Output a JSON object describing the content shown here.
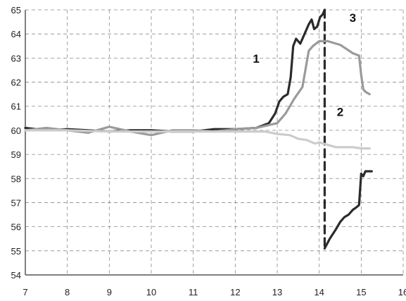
{
  "chart_data": {
    "type": "line",
    "title": "",
    "xlabel": "",
    "ylabel": "",
    "xlim": [
      7,
      16
    ],
    "ylim": [
      54,
      65
    ],
    "xticks": [
      7,
      8,
      9,
      10,
      11,
      12,
      13,
      14,
      15,
      16
    ],
    "yticks": [
      54,
      55,
      56,
      57,
      58,
      59,
      60,
      61,
      62,
      63,
      64,
      65
    ],
    "grid": true,
    "legend": "none",
    "annotations": [
      {
        "text": "1",
        "x": 12.5,
        "y": 62.8
      },
      {
        "text": "2",
        "x": 14.5,
        "y": 60.6
      },
      {
        "text": "3",
        "x": 14.8,
        "y": 64.5
      }
    ],
    "series": [
      {
        "color": "#2b2b2b",
        "style": "solid",
        "x": [
          7.0,
          7.5,
          8.0,
          8.5,
          9.0,
          9.5,
          10.0,
          10.5,
          11.0,
          11.5,
          12.0,
          12.5,
          12.8,
          12.95,
          13.05,
          13.15,
          13.25,
          13.32,
          13.38,
          13.45,
          13.55,
          13.65,
          13.75,
          13.82,
          13.88,
          13.95,
          14.02,
          14.08,
          14.13
        ],
        "y": [
          60.1,
          60.0,
          60.05,
          60.0,
          59.95,
          60.0,
          60.0,
          59.95,
          59.95,
          60.05,
          60.05,
          60.1,
          60.3,
          60.7,
          61.2,
          61.4,
          61.5,
          62.2,
          63.5,
          63.8,
          63.6,
          64.0,
          64.4,
          64.6,
          64.2,
          64.3,
          64.7,
          64.8,
          65.0
        ]
      },
      {
        "color": "#2b2b2b",
        "style": "dashed",
        "x": [
          14.13,
          14.13
        ],
        "y": [
          65.0,
          55.1
        ]
      },
      {
        "color": "#2b2b2b",
        "style": "solid",
        "x": [
          14.13,
          14.25,
          14.4,
          14.5,
          14.6,
          14.7,
          14.8,
          14.88,
          14.95,
          15.0,
          15.05,
          15.1,
          15.15,
          15.2,
          15.25
        ],
        "y": [
          55.1,
          55.5,
          55.9,
          56.2,
          56.4,
          56.5,
          56.7,
          56.8,
          56.9,
          58.2,
          58.1,
          58.3,
          58.3,
          58.3,
          58.3
        ]
      },
      {
        "color": "#9a9a9a",
        "style": "solid",
        "x": [
          7.0,
          7.5,
          8.0,
          8.5,
          9.0,
          9.5,
          10.0,
          10.5,
          11.0,
          11.5,
          12.0,
          12.5,
          13.0,
          13.2,
          13.4,
          13.6,
          13.75,
          13.85,
          14.0,
          14.2,
          14.5,
          14.8,
          14.95,
          15.0,
          15.05,
          15.1,
          15.2
        ],
        "y": [
          60.0,
          60.1,
          60.0,
          59.9,
          60.15,
          59.95,
          59.8,
          60.0,
          60.0,
          59.95,
          60.05,
          60.1,
          60.3,
          60.7,
          61.3,
          61.8,
          63.3,
          63.5,
          63.7,
          63.7,
          63.55,
          63.2,
          63.1,
          62.3,
          61.7,
          61.6,
          61.5
        ]
      },
      {
        "color": "#cccccc",
        "style": "solid",
        "x": [
          7.0,
          8.0,
          9.0,
          10.0,
          11.0,
          12.0,
          12.7,
          13.0,
          13.3,
          13.5,
          13.7,
          13.9,
          14.0,
          14.2,
          14.4,
          14.6,
          14.8,
          15.0,
          15.2
        ],
        "y": [
          60.0,
          60.0,
          59.95,
          59.95,
          59.95,
          59.95,
          59.95,
          59.85,
          59.8,
          59.65,
          59.6,
          59.45,
          59.5,
          59.4,
          59.3,
          59.3,
          59.3,
          59.25,
          59.25
        ]
      }
    ]
  }
}
